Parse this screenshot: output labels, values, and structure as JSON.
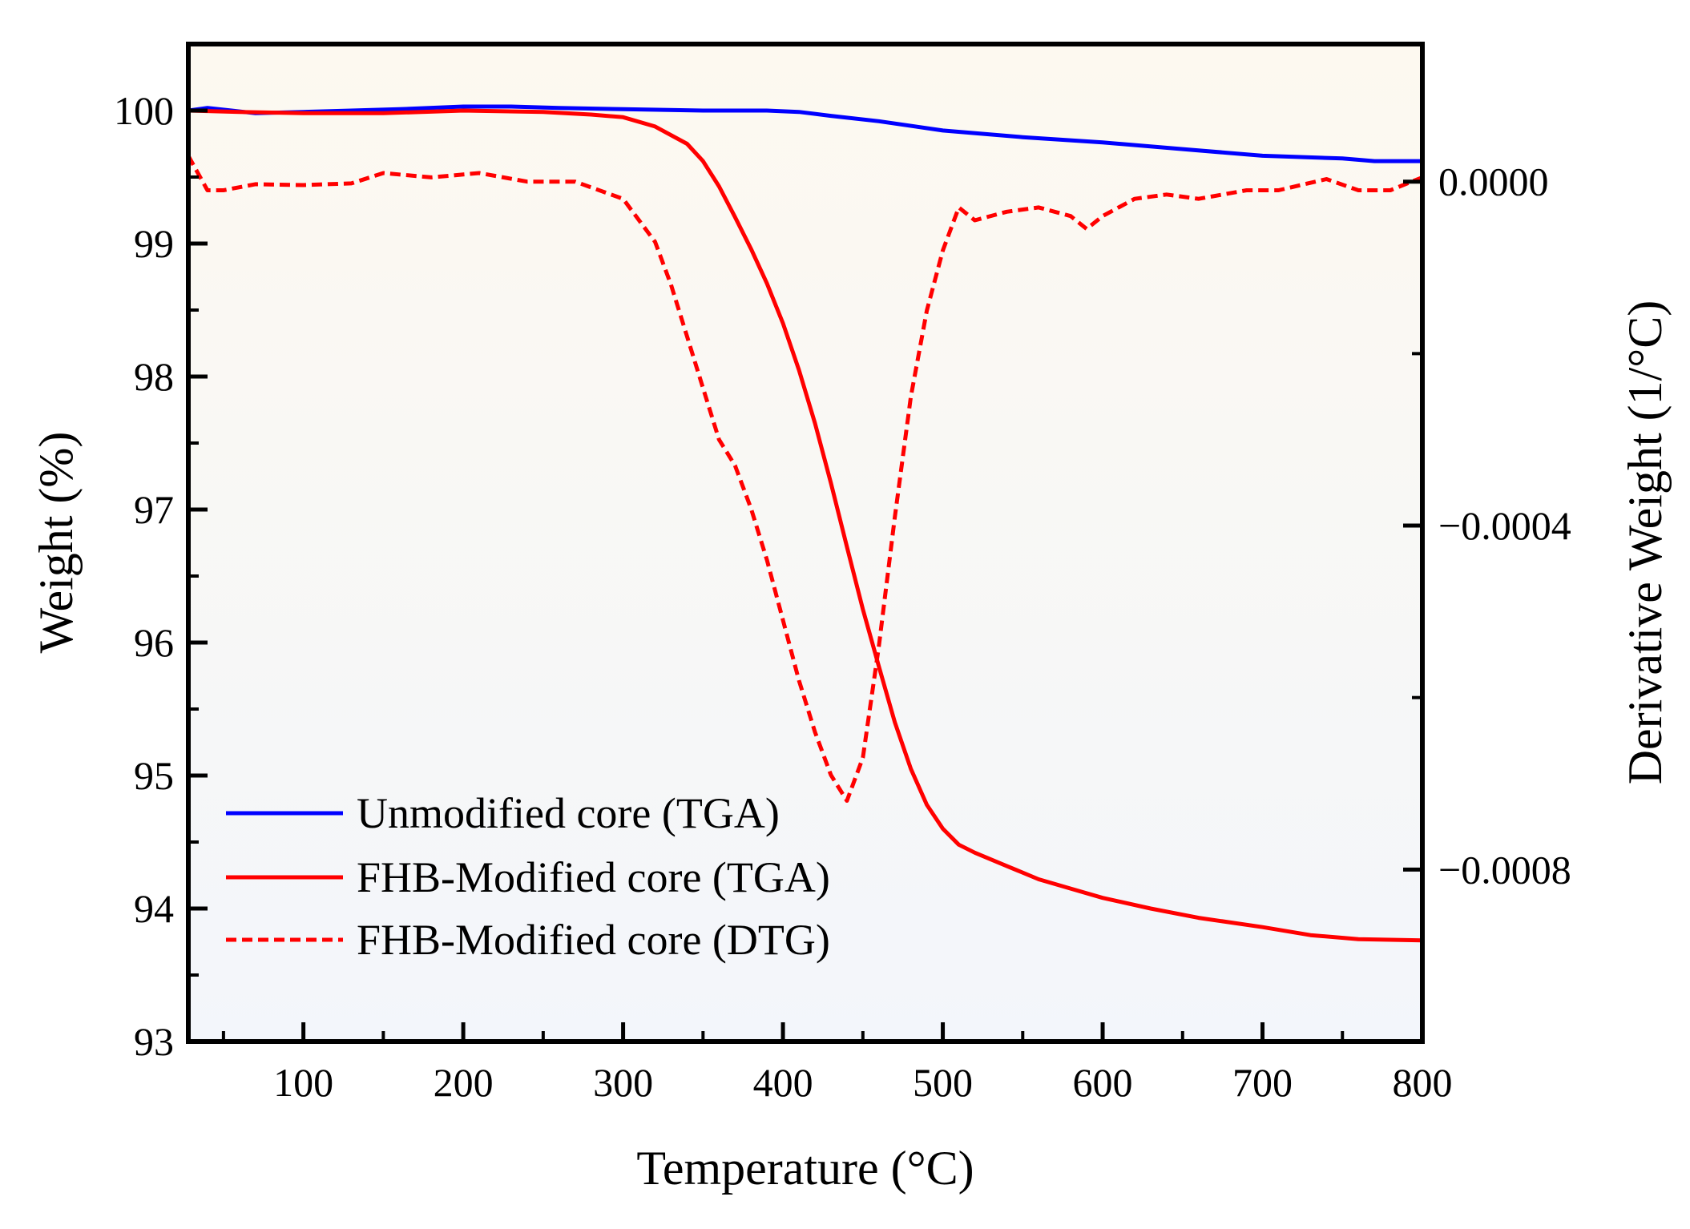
{
  "chart_data": {
    "type": "line",
    "title": "",
    "xlabel": "Temperature (°C)",
    "ylabel": "Weight (%)",
    "y2label": "Derivative Weight (1/°C)",
    "xlim": [
      28,
      800
    ],
    "ylim": [
      93,
      100.5
    ],
    "y2lim": [
      -0.001,
      0.00016
    ],
    "x_ticks": [
      100,
      200,
      300,
      400,
      500,
      600,
      700,
      800
    ],
    "x_tick_labels": [
      "100",
      "200",
      "300",
      "400",
      "500",
      "600",
      "700",
      "800"
    ],
    "y_ticks": [
      93,
      94,
      95,
      96,
      97,
      98,
      99,
      100
    ],
    "y_tick_labels": [
      "93",
      "94",
      "95",
      "96",
      "97",
      "98",
      "99",
      "100"
    ],
    "y2_ticks": [
      0.0,
      -0.0004,
      -0.0008
    ],
    "y2_tick_labels": [
      "0.0000",
      "−0.0004",
      "−0.0008"
    ],
    "grid": false,
    "legend_position": "bottom-left",
    "background_gradient": [
      "#fdf9f0",
      "#f3f6fb"
    ],
    "series": [
      {
        "name": "Unmodified core (TGA)",
        "axis": "left",
        "color": "#0000ff",
        "style": "solid",
        "x": [
          28,
          40,
          55,
          70,
          100,
          130,
          160,
          200,
          230,
          260,
          300,
          350,
          390,
          410,
          430,
          460,
          500,
          550,
          600,
          650,
          700,
          750,
          770,
          800
        ],
        "y": [
          100.0,
          100.02,
          100.0,
          99.98,
          99.99,
          100.0,
          100.01,
          100.03,
          100.03,
          100.02,
          100.01,
          100.0,
          100.0,
          99.99,
          99.96,
          99.92,
          99.85,
          99.8,
          99.76,
          99.71,
          99.66,
          99.64,
          99.62,
          99.62
        ]
      },
      {
        "name": "FHB-Modified core (TGA)",
        "axis": "left",
        "color": "#ff0000",
        "style": "solid",
        "x": [
          28,
          60,
          100,
          150,
          200,
          250,
          280,
          300,
          320,
          340,
          350,
          360,
          370,
          380,
          390,
          400,
          410,
          420,
          430,
          440,
          450,
          460,
          470,
          480,
          490,
          500,
          510,
          520,
          540,
          560,
          580,
          600,
          630,
          660,
          700,
          730,
          760,
          800
        ],
        "y": [
          100.0,
          99.99,
          99.98,
          99.98,
          100.0,
          99.99,
          99.97,
          99.95,
          99.88,
          99.75,
          99.62,
          99.43,
          99.2,
          98.96,
          98.7,
          98.4,
          98.05,
          97.65,
          97.2,
          96.72,
          96.25,
          95.82,
          95.4,
          95.05,
          94.78,
          94.6,
          94.48,
          94.42,
          94.32,
          94.22,
          94.15,
          94.08,
          94.0,
          93.93,
          93.86,
          93.8,
          93.77,
          93.76
        ]
      },
      {
        "name": "FHB-Modified core (DTG)",
        "axis": "right",
        "color": "#ff0000",
        "style": "dashed",
        "x": [
          28,
          40,
          50,
          70,
          100,
          130,
          150,
          180,
          210,
          240,
          270,
          300,
          320,
          330,
          340,
          350,
          360,
          370,
          380,
          390,
          400,
          410,
          420,
          430,
          440,
          450,
          460,
          470,
          480,
          490,
          500,
          510,
          520,
          540,
          560,
          580,
          590,
          600,
          620,
          640,
          660,
          690,
          710,
          740,
          760,
          780,
          800
        ],
        "y": [
          3e-05,
          -1e-05,
          -1e-05,
          -3e-06,
          -4e-06,
          -2e-06,
          1e-05,
          5e-06,
          1e-05,
          0.0,
          0.0,
          -2e-05,
          -7e-05,
          -0.00012,
          -0.00018,
          -0.00024,
          -0.0003,
          -0.00033,
          -0.00038,
          -0.00044,
          -0.00051,
          -0.00058,
          -0.00064,
          -0.00069,
          -0.00072,
          -0.00067,
          -0.00054,
          -0.00039,
          -0.00025,
          -0.00015,
          -8e-05,
          -3e-05,
          -4.5e-05,
          -3.5e-05,
          -3e-05,
          -4e-05,
          -5.5e-05,
          -4e-05,
          -2e-05,
          -1.5e-05,
          -2e-05,
          -1e-05,
          -1e-05,
          3e-06,
          -1e-05,
          -1e-05,
          5e-06
        ]
      }
    ]
  }
}
